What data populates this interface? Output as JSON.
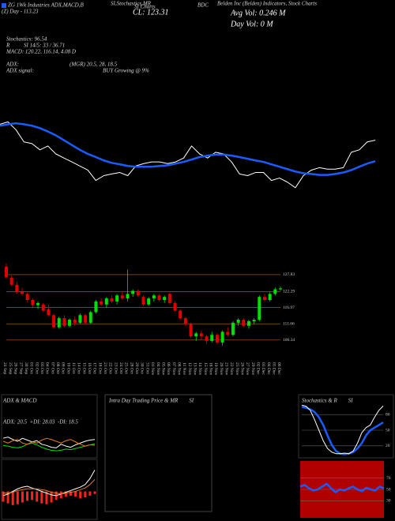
{
  "header": {
    "title_left": "ZG 1Wk Industries ADX,MACD,B",
    "title_mid": "SI,Stochastics,MR",
    "title_site": "SI Charts",
    "symbol": "BDC",
    "company": "Belden Inc (Belden) Indicators, Stock Charts",
    "day": "(Z) Day - 113.23",
    "close": "CL: 123.31",
    "avg_vol": "Avg Vol: 0.246 M",
    "day_vol": "Day Vol: 0 M",
    "stochastics": "Stochastics: 96.54",
    "r_label": "R",
    "rsi": "SI 14/5: 33 / 36.71",
    "macd": "MACD: 120.22, 116.14, 4.08 D",
    "adx": "ADX:",
    "adx_value": "(MGR) 20.5, 28, 18.5",
    "adx_signal": "ADX signal:",
    "adx_signal_value": "BUY Growing @ 9%"
  },
  "chart_data": [
    {
      "type": "line",
      "ylim": [
        97,
        133
      ],
      "series": [
        {
          "color": "#ffffff",
          "values": [
            127.3,
            128.3,
            125,
            120,
            119.3,
            116.7,
            118.3,
            115,
            113.3,
            111.7,
            110,
            108.3,
            104,
            106,
            106.7,
            107.3,
            106,
            110,
            111,
            111.7,
            111.7,
            111,
            111.7,
            113.3,
            118.3,
            115,
            113.3,
            115.7,
            115,
            111.7,
            106.7,
            106,
            107.3,
            107.3,
            104,
            105,
            103.3,
            101,
            106,
            108.3,
            109.3,
            108.7,
            108.7,
            109.3,
            115.7,
            116.7,
            120,
            120.7
          ]
        },
        {
          "color": "#1a5cff",
          "values": [
            126.7,
            127.3,
            127.7,
            127.3,
            126.7,
            125.7,
            124.3,
            122.7,
            120.7,
            118.7,
            116.7,
            115,
            113.7,
            112.3,
            111.3,
            110.7,
            110,
            109.7,
            109.7,
            109.7,
            110,
            110.3,
            111,
            111.7,
            112.7,
            113.7,
            114.3,
            114.7,
            114.7,
            114.3,
            113.7,
            113,
            112.3,
            111.7,
            110.7,
            109.7,
            108.7,
            107.7,
            107,
            106.7,
            106.3,
            106.3,
            106.7,
            107.3,
            108.3,
            109.7,
            111,
            112
          ]
        }
      ]
    },
    {
      "type": "candlestick",
      "categories": [
        "24 Sep",
        "25 Sep",
        "26 Sep",
        "27 Sep",
        "30 Sep",
        "01 Oct",
        "02 Oct",
        "03 Oct",
        "04 Oct",
        "07 Oct",
        "08 Oct",
        "09 Oct",
        "10 Oct",
        "11 Oct",
        "14 Oct",
        "15 Oct",
        "16 Oct",
        "17 Oct",
        "18 Oct",
        "21 Oct",
        "22 Oct",
        "23 Oct",
        "24 Oct",
        "25 Oct",
        "28 Oct",
        "29 Oct",
        "30 Oct",
        "31 Oct",
        "01 Nov",
        "04 Nov",
        "05 Nov",
        "06 Nov",
        "07 Nov",
        "08 Nov",
        "11 Nov",
        "12 Nov",
        "13 Nov",
        "14 Nov",
        "15 Nov",
        "18 Nov",
        "19 Nov",
        "20 Nov",
        "21 Nov",
        "22 Nov",
        "25 Nov",
        "26 Nov",
        "27 Nov",
        "29 Nov",
        "02 Dec",
        "03 Dec",
        "04 Dec",
        "05 Dec",
        "06 Dec"
      ],
      "open": [
        130.5,
        126.8,
        124.5,
        122.2,
        121.5,
        119.5,
        117.8,
        118,
        116.5,
        114.5,
        110.5,
        113.5,
        111,
        113,
        112,
        114.5,
        112,
        115.5,
        119,
        118,
        120,
        119,
        121,
        120,
        121.5,
        122.5,
        120.5,
        118,
        120,
        121,
        119.5,
        121.5,
        118.5,
        116,
        113.5,
        111.5,
        107.5,
        108.5,
        107.5,
        106,
        108,
        105.5,
        109,
        108,
        112,
        113,
        111,
        112.5,
        113,
        120.5,
        119.5,
        121.5,
        123
      ],
      "high": [
        131.5,
        127.5,
        125.5,
        123.5,
        122,
        120,
        119,
        118.5,
        118,
        115,
        114,
        114.5,
        113.5,
        114,
        115,
        115,
        116,
        119.5,
        120,
        120.5,
        121,
        121.5,
        122,
        129.5,
        123,
        123,
        121,
        120.5,
        121.5,
        121.5,
        121,
        122,
        119,
        116.5,
        114,
        112,
        109,
        109.5,
        108,
        109,
        108.5,
        109.5,
        110.5,
        112.5,
        113.5,
        113.5,
        113,
        113.5,
        121,
        121.5,
        122,
        123.5,
        124
      ],
      "low": [
        126.5,
        124,
        121.5,
        121,
        118.8,
        117,
        116.5,
        115.5,
        114,
        110,
        110,
        110.5,
        110.5,
        111,
        111.5,
        111.5,
        111.5,
        115,
        117.5,
        117,
        118.5,
        118,
        119.5,
        119,
        120.5,
        120.5,
        117.5,
        117.5,
        119,
        119,
        118.5,
        118,
        115.5,
        113,
        111,
        107,
        106,
        106.5,
        105,
        105.5,
        105,
        104.5,
        107.5,
        107.5,
        111,
        110.5,
        110,
        111.5,
        112.5,
        119,
        119,
        121,
        122.5
      ],
      "close": [
        127,
        124.5,
        122,
        121.5,
        119.5,
        117.8,
        118.5,
        116,
        114.5,
        110.5,
        113.5,
        111,
        113,
        112,
        114.5,
        112,
        115.5,
        119,
        118,
        120,
        119,
        121,
        120,
        121.5,
        122.5,
        121,
        118,
        120,
        121,
        119.5,
        120.5,
        118.5,
        116,
        113.5,
        111.5,
        107.5,
        108.5,
        107.5,
        106,
        108,
        105.5,
        109,
        108,
        112,
        113,
        111,
        112.5,
        113,
        120.5,
        119.5,
        121.5,
        123,
        123.31
      ],
      "up_color": "#00e000",
      "down_color": "#e00000",
      "ylim": [
        100,
        132.5
      ],
      "yticks": [
        127.83,
        122.29,
        116.97,
        111.66,
        106.34
      ],
      "grid": true,
      "grid_color": "#c06a1a"
    },
    {
      "type": "line",
      "title": "ADX & MACD",
      "label": "ADX: 20.5  +DI: 28.03  -DI: 18.5",
      "ylim": [
        0,
        50
      ],
      "series": [
        {
          "color": "#00e000",
          "values": [
            18,
            17,
            15,
            14,
            16,
            20,
            22,
            19,
            15,
            12,
            10,
            9,
            10,
            12,
            11,
            13,
            15,
            17,
            19,
            20.5
          ]
        },
        {
          "color": "#ffffff",
          "values": [
            30,
            32,
            28,
            25,
            30,
            27,
            24,
            26,
            20,
            18,
            15,
            14,
            20,
            17,
            15,
            19,
            22,
            25,
            27,
            28.03
          ]
        },
        {
          "color": "#e08020",
          "values": [
            25,
            22,
            26,
            28,
            22,
            20,
            24,
            22,
            27,
            30,
            28,
            25,
            22,
            26,
            28,
            24,
            20,
            17,
            19,
            18.5
          ]
        }
      ]
    },
    {
      "type": "macd",
      "ylim": [
        -3,
        3
      ],
      "histogram_color": "#ff2020",
      "histogram": [
        -1.2,
        -1.4,
        -1.6,
        -1.5,
        -1.3,
        -1.1,
        -1,
        -1.2,
        -1.4,
        -1.5,
        -1.3,
        -1,
        -0.8,
        -0.6,
        -0.5,
        -0.6,
        -0.8,
        -0.7,
        -0.5,
        -0.3
      ],
      "series": [
        {
          "color": "#ffffff",
          "values": [
            -0.5,
            -0.3,
            0,
            0.3,
            0.5,
            0.6,
            0.4,
            0.2,
            0,
            -0.2,
            -0.4,
            -0.5,
            -0.3,
            -0.1,
            0.1,
            0.3,
            0.5,
            0.8,
            1.5,
            2.5
          ]
        },
        {
          "color": "#e08020",
          "values": [
            -0.2,
            -0.2,
            -0.1,
            0.1,
            0.2,
            0.3,
            0.3,
            0.3,
            0.2,
            0.1,
            -0.1,
            -0.2,
            -0.3,
            -0.2,
            -0.1,
            0,
            0.2,
            0.4,
            0.8,
            1.4
          ]
        }
      ]
    },
    {
      "type": "empty",
      "title": "Intra Day Trading Price & MR        SI"
    },
    {
      "type": "line",
      "title": "Stochastics & R        SI",
      "ylim": [
        0,
        100
      ],
      "yticks": [
        80,
        50,
        20
      ],
      "grid": true,
      "series": [
        {
          "color": "#1a5cff",
          "values": [
            95,
            93,
            90,
            85,
            75,
            60,
            40,
            22,
            10,
            5,
            4,
            5,
            8,
            15,
            25,
            40,
            50,
            55,
            60,
            65
          ]
        },
        {
          "color": "#ffffff",
          "values": [
            98,
            96,
            88,
            70,
            50,
            30,
            15,
            8,
            5,
            5,
            6,
            5,
            10,
            25,
            45,
            55,
            60,
            75,
            88,
            96.54
          ]
        }
      ]
    },
    {
      "type": "line",
      "ylim": [
        0,
        100
      ],
      "yticks": [
        70,
        50,
        30
      ],
      "grid": true,
      "background": "#b00000",
      "series": [
        {
          "color": "#1a5cff",
          "values": [
            55,
            58,
            52,
            48,
            50,
            55,
            60,
            52,
            45,
            50,
            48,
            52,
            55,
            50,
            47,
            53,
            50,
            48,
            55,
            52
          ]
        }
      ]
    }
  ]
}
